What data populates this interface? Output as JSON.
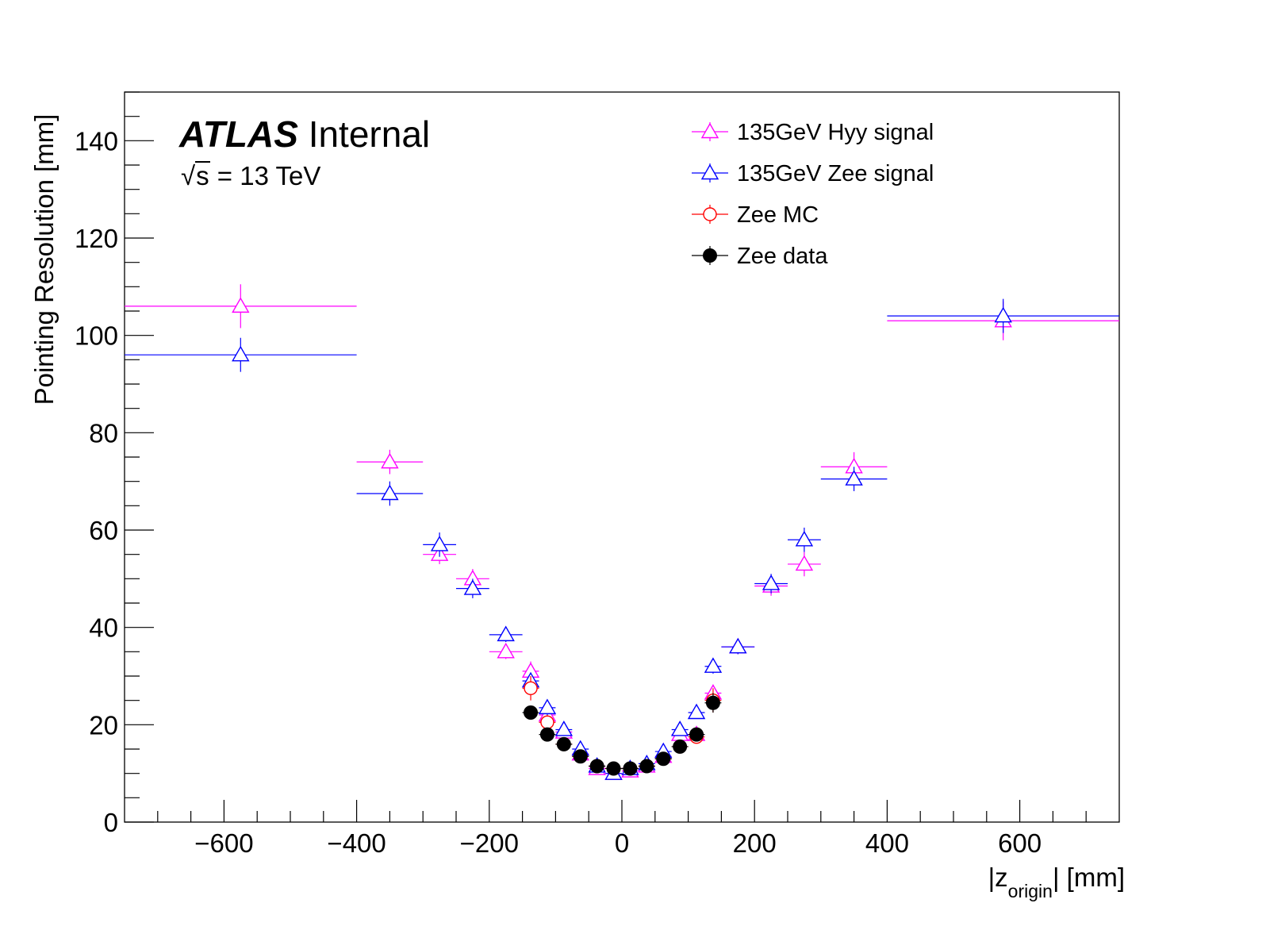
{
  "atlas": {
    "brand": "ATLAS",
    "status": "Internal",
    "energy_prefix": "s",
    "energy_value": " = 13 TeV"
  },
  "chart_data": {
    "type": "scatter",
    "title": "",
    "xlabel": {
      "prefix": "|z",
      "sub": "origin",
      "suffix": "| [mm]"
    },
    "ylabel": "Pointing Resolution [mm]",
    "xlim": [
      -750,
      750
    ],
    "ylim": [
      0,
      150
    ],
    "xticks": [
      -600,
      -400,
      -200,
      0,
      200,
      400,
      600
    ],
    "xtick_labels": [
      "−600",
      "−400",
      "−200",
      "0",
      "200",
      "400",
      "600"
    ],
    "yticks": [
      0,
      20,
      40,
      60,
      80,
      100,
      120,
      140
    ],
    "ytick_labels": [
      "0",
      "20",
      "40",
      "60",
      "80",
      "100",
      "120",
      "140"
    ],
    "legend_position": "top-right",
    "series": [
      {
        "name": "135GeV Hyy signal",
        "color": "#ff00ff",
        "marker": "triangle-open",
        "points": [
          {
            "x": -575,
            "xerr": 175,
            "y": 106,
            "yerr": 4.5
          },
          {
            "x": -350,
            "xerr": 50,
            "y": 74,
            "yerr": 2.5
          },
          {
            "x": -275,
            "xerr": 25,
            "y": 55,
            "yerr": 2
          },
          {
            "x": -225,
            "xerr": 25,
            "y": 50,
            "yerr": 2
          },
          {
            "x": -175,
            "xerr": 25,
            "y": 35,
            "yerr": 1.5
          },
          {
            "x": -137.5,
            "xerr": 12.5,
            "y": 31,
            "yerr": 2
          },
          {
            "x": -112.5,
            "xerr": 12.5,
            "y": 22,
            "yerr": 1.5
          },
          {
            "x": -87.5,
            "xerr": 12.5,
            "y": 18.5,
            "yerr": 1
          },
          {
            "x": -62.5,
            "xerr": 12.5,
            "y": 14,
            "yerr": 1
          },
          {
            "x": -37.5,
            "xerr": 12.5,
            "y": 11,
            "yerr": 0.8
          },
          {
            "x": -12.5,
            "xerr": 12.5,
            "y": 10,
            "yerr": 0.8
          },
          {
            "x": 12.5,
            "xerr": 12.5,
            "y": 10.5,
            "yerr": 0.8
          },
          {
            "x": 37.5,
            "xerr": 12.5,
            "y": 11.5,
            "yerr": 0.8
          },
          {
            "x": 62.5,
            "xerr": 12.5,
            "y": 13.5,
            "yerr": 1
          },
          {
            "x": 87.5,
            "xerr": 12.5,
            "y": 18,
            "yerr": 1
          },
          {
            "x": 112.5,
            "xerr": 12.5,
            "y": 18,
            "yerr": 1
          },
          {
            "x": 137.5,
            "xerr": 12.5,
            "y": 26.5,
            "yerr": 1.5
          },
          {
            "x": 175,
            "xerr": 25,
            "y": 36,
            "yerr": 1.5
          },
          {
            "x": 225,
            "xerr": 25,
            "y": 48.5,
            "yerr": 2
          },
          {
            "x": 275,
            "xerr": 25,
            "y": 53,
            "yerr": 2.5
          },
          {
            "x": 350,
            "xerr": 50,
            "y": 73,
            "yerr": 3
          },
          {
            "x": 575,
            "xerr": 175,
            "y": 103,
            "yerr": 4
          }
        ]
      },
      {
        "name": "135GeV Zee signal",
        "color": "#0000ff",
        "marker": "triangle-open",
        "points": [
          {
            "x": -575,
            "xerr": 175,
            "y": 96,
            "yerr": 3.5
          },
          {
            "x": -350,
            "xerr": 50,
            "y": 67.5,
            "yerr": 2.5
          },
          {
            "x": -275,
            "xerr": 25,
            "y": 57,
            "yerr": 2.5
          },
          {
            "x": -225,
            "xerr": 25,
            "y": 48,
            "yerr": 2
          },
          {
            "x": -175,
            "xerr": 25,
            "y": 38.5,
            "yerr": 1.5
          },
          {
            "x": -137.5,
            "xerr": 12.5,
            "y": 29,
            "yerr": 1.5
          },
          {
            "x": -112.5,
            "xerr": 12.5,
            "y": 23.5,
            "yerr": 1.5
          },
          {
            "x": -87.5,
            "xerr": 12.5,
            "y": 19,
            "yerr": 1
          },
          {
            "x": -62.5,
            "xerr": 12.5,
            "y": 15,
            "yerr": 1
          },
          {
            "x": -37.5,
            "xerr": 12.5,
            "y": 11.5,
            "yerr": 0.8
          },
          {
            "x": -12.5,
            "xerr": 12.5,
            "y": 10,
            "yerr": 0.8
          },
          {
            "x": 12.5,
            "xerr": 12.5,
            "y": 11,
            "yerr": 0.8
          },
          {
            "x": 37.5,
            "xerr": 12.5,
            "y": 12,
            "yerr": 0.8
          },
          {
            "x": 62.5,
            "xerr": 12.5,
            "y": 14.5,
            "yerr": 1
          },
          {
            "x": 87.5,
            "xerr": 12.5,
            "y": 19,
            "yerr": 1
          },
          {
            "x": 112.5,
            "xerr": 12.5,
            "y": 22.5,
            "yerr": 1
          },
          {
            "x": 137.5,
            "xerr": 12.5,
            "y": 32,
            "yerr": 1.5
          },
          {
            "x": 175,
            "xerr": 25,
            "y": 36,
            "yerr": 1.5
          },
          {
            "x": 225,
            "xerr": 25,
            "y": 49,
            "yerr": 2
          },
          {
            "x": 275,
            "xerr": 25,
            "y": 58,
            "yerr": 2.5
          },
          {
            "x": 350,
            "xerr": 50,
            "y": 70.5,
            "yerr": 2.5
          },
          {
            "x": 575,
            "xerr": 175,
            "y": 104,
            "yerr": 3.5
          }
        ]
      },
      {
        "name": "Zee MC",
        "color": "#ff0000",
        "marker": "circle-open",
        "points": [
          {
            "x": -137.5,
            "xerr": 12.5,
            "y": 27.5,
            "yerr": 2.5
          },
          {
            "x": -112.5,
            "xerr": 12.5,
            "y": 20.5,
            "yerr": 1.5
          },
          {
            "x": -87.5,
            "xerr": 12.5,
            "y": 16,
            "yerr": 1
          },
          {
            "x": -62.5,
            "xerr": 12.5,
            "y": 13.5,
            "yerr": 0.8
          },
          {
            "x": -37.5,
            "xerr": 12.5,
            "y": 11.5,
            "yerr": 0.6
          },
          {
            "x": -12.5,
            "xerr": 12.5,
            "y": 11,
            "yerr": 0.6
          },
          {
            "x": 12.5,
            "xerr": 12.5,
            "y": 11,
            "yerr": 0.6
          },
          {
            "x": 37.5,
            "xerr": 12.5,
            "y": 11.5,
            "yerr": 0.6
          },
          {
            "x": 62.5,
            "xerr": 12.5,
            "y": 13,
            "yerr": 0.8
          },
          {
            "x": 87.5,
            "xerr": 12.5,
            "y": 15.5,
            "yerr": 1
          },
          {
            "x": 112.5,
            "xerr": 12.5,
            "y": 17.5,
            "yerr": 1.2
          },
          {
            "x": 137.5,
            "xerr": 12.5,
            "y": 25,
            "yerr": 2.5
          }
        ]
      },
      {
        "name": "Zee data",
        "color": "#000000",
        "marker": "circle-filled",
        "points": [
          {
            "x": -137.5,
            "xerr": 12.5,
            "y": 22.5,
            "yerr": 1
          },
          {
            "x": -112.5,
            "xerr": 12.5,
            "y": 18,
            "yerr": 0.8
          },
          {
            "x": -87.5,
            "xerr": 12.5,
            "y": 16,
            "yerr": 0.7
          },
          {
            "x": -62.5,
            "xerr": 12.5,
            "y": 13.5,
            "yerr": 0.6
          },
          {
            "x": -37.5,
            "xerr": 12.5,
            "y": 11.5,
            "yerr": 0.5
          },
          {
            "x": -12.5,
            "xerr": 12.5,
            "y": 11,
            "yerr": 0.5
          },
          {
            "x": 12.5,
            "xerr": 12.5,
            "y": 11,
            "yerr": 0.5
          },
          {
            "x": 37.5,
            "xerr": 12.5,
            "y": 11.5,
            "yerr": 0.5
          },
          {
            "x": 62.5,
            "xerr": 12.5,
            "y": 13,
            "yerr": 0.6
          },
          {
            "x": 87.5,
            "xerr": 12.5,
            "y": 15.5,
            "yerr": 0.7
          },
          {
            "x": 112.5,
            "xerr": 12.5,
            "y": 18,
            "yerr": 0.8
          },
          {
            "x": 137.5,
            "xerr": 12.5,
            "y": 24.5,
            "yerr": 2
          }
        ]
      }
    ]
  }
}
